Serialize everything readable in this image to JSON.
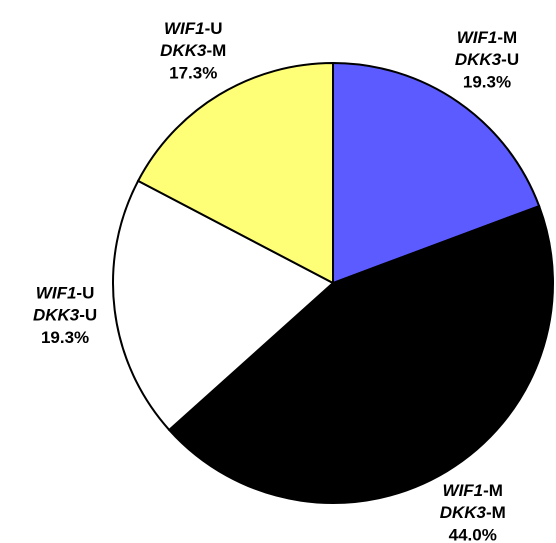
{
  "chart_data": {
    "type": "pie",
    "categories": [
      "WIF1-M DKK3-U",
      "WIF1-M DKK3-M",
      "WIF1-U DKK3-U",
      "WIF1-U DKK3-M"
    ],
    "values": [
      19.3,
      44.0,
      19.3,
      17.3
    ],
    "value_labels": [
      "19.3%",
      "44.0%",
      "19.3%",
      "17.3%"
    ],
    "colors": [
      "#5b5bff",
      "#000000",
      "#ffffff",
      "#ffff77"
    ]
  }
}
